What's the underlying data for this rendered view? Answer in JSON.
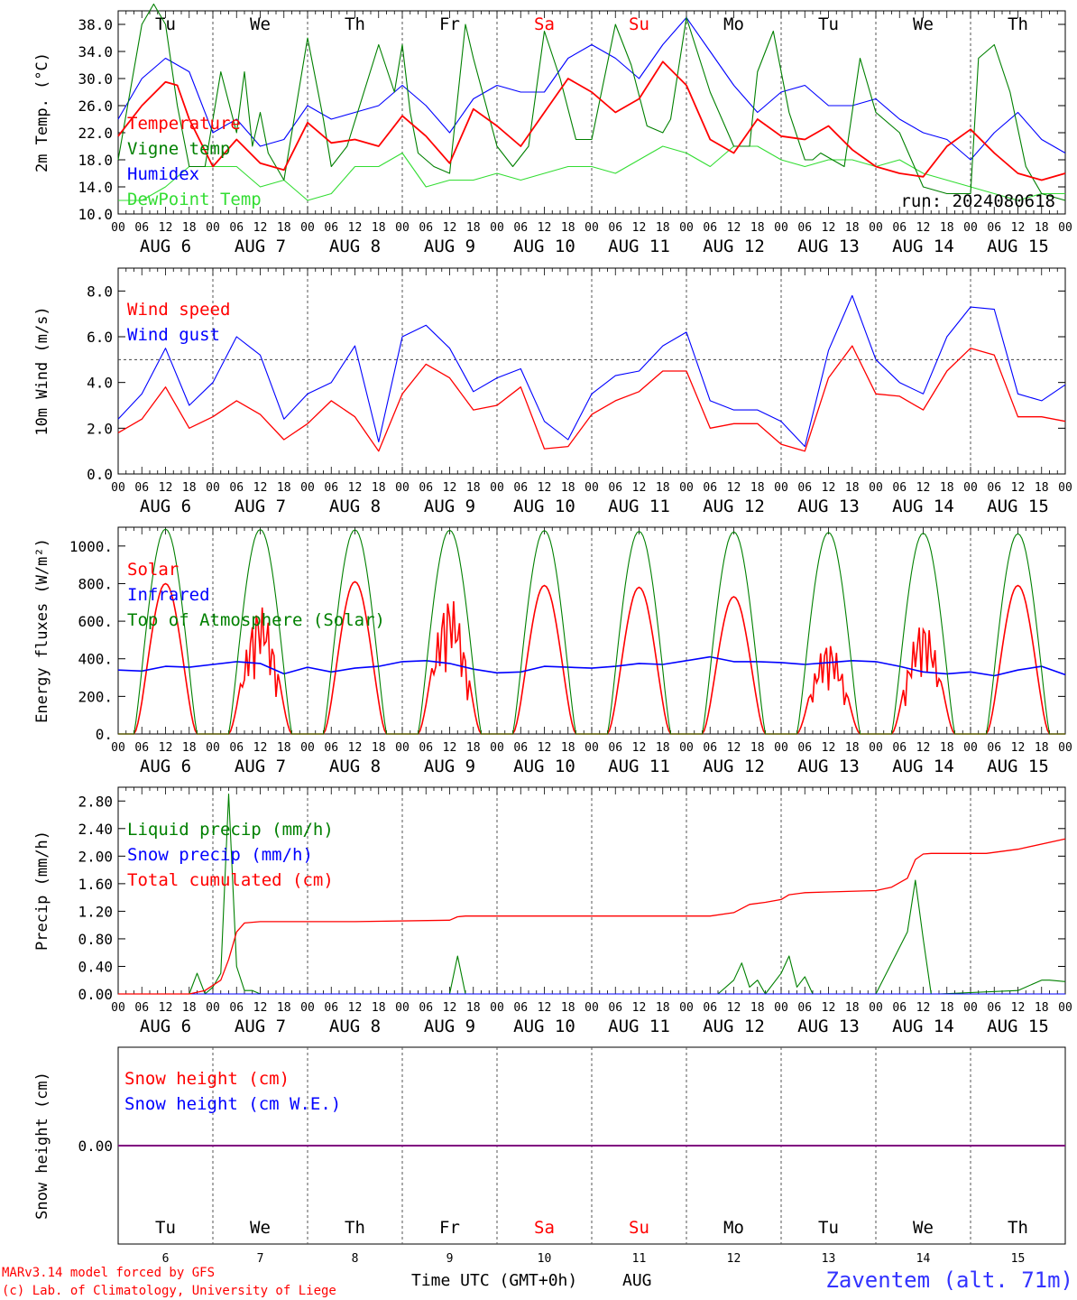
{
  "run_label": "run: 2024080618",
  "footer": {
    "model": "MARv3.14 model forced by GFS",
    "lab": "(c) Lab. of Climatology, University of Liege",
    "xlabel": "Time UTC (GMT+0h)",
    "month": "AUG",
    "station": "Zaventem (alt. 71m)"
  },
  "colors": {
    "red": "#ff0000",
    "dark_green": "#008000",
    "blue": "#0000ff",
    "light_green": "#33dd33",
    "weekend": "#ff0000",
    "purple": "#800080"
  },
  "chart_data": [
    {
      "type": "line",
      "ylabel": "2m Temp. (°C)",
      "ylim": [
        10,
        40
      ],
      "yticks": [
        "10.0",
        "14.0",
        "18.0",
        "22.0",
        "26.0",
        "30.0",
        "34.0",
        "38.0"
      ],
      "x_unit": "hours since 2024-08-06 00 UTC",
      "day_names": [
        "Tu",
        "We",
        "Th",
        "Fr",
        "Sa",
        "Su",
        "Mo",
        "Tu",
        "We",
        "Th"
      ],
      "day_name_colors": [
        "#000000",
        "#000000",
        "#000000",
        "#000000",
        "#ff0000",
        "#ff0000",
        "#000000",
        "#000000",
        "#000000",
        "#000000"
      ],
      "hour_ticks": [
        "00",
        "06",
        "12",
        "18"
      ],
      "date_labels": [
        "AUG 6",
        "AUG 7",
        "AUG 8",
        "AUG 9",
        "AUG 10",
        "AUG 11",
        "AUG 12",
        "AUG 13",
        "AUG 14",
        "AUG 15"
      ],
      "series": [
        {
          "name": "Temperature",
          "color": "#ff0000",
          "width": 1.8,
          "x": [
            0,
            6,
            12,
            15,
            18,
            24,
            30,
            36,
            42,
            48,
            54,
            60,
            66,
            72,
            78,
            84,
            90,
            96,
            102,
            108,
            114,
            120,
            126,
            132,
            138,
            144,
            150,
            156,
            162,
            168,
            174,
            180,
            186,
            192,
            198,
            204,
            210,
            216,
            222,
            228,
            234,
            240
          ],
          "y": [
            21.5,
            26,
            29.5,
            29,
            24,
            17,
            21,
            17.5,
            16.5,
            23.5,
            20.5,
            21,
            20,
            24.5,
            21.5,
            17.5,
            25.5,
            23,
            20,
            25,
            30,
            28,
            25,
            27,
            32.5,
            29,
            21,
            19,
            24,
            21.5,
            21,
            23,
            19.5,
            17,
            16,
            15.5,
            20,
            22.5,
            19,
            16,
            15,
            16
          ]
        },
        {
          "name": "Vigne temp",
          "color": "#008000",
          "width": 1.1,
          "x": [
            0,
            6,
            9,
            12,
            15,
            18,
            22,
            26,
            30,
            32,
            34,
            36,
            38,
            42,
            48,
            52,
            54,
            58,
            66,
            70,
            72,
            74,
            76,
            80,
            84,
            88,
            90,
            96,
            100,
            104,
            108,
            112,
            116,
            120,
            126,
            130,
            134,
            138,
            140,
            144,
            150,
            156,
            160,
            162,
            166,
            170,
            174,
            176,
            178,
            184,
            188,
            192,
            198,
            204,
            210,
            216,
            218,
            222,
            226,
            230,
            234,
            240
          ],
          "y": [
            18,
            38,
            41,
            38,
            26,
            17,
            17,
            31,
            22,
            31,
            20,
            25,
            19,
            15,
            36,
            24,
            17,
            20,
            35,
            28,
            35,
            25,
            19,
            17,
            16,
            38,
            33,
            20,
            17,
            20,
            37,
            30,
            21,
            21,
            38,
            32,
            23,
            22,
            24,
            39,
            28,
            20,
            20,
            31,
            37,
            25,
            18,
            18,
            19,
            17,
            33,
            25,
            22,
            14,
            13,
            13,
            33,
            35,
            28,
            17,
            13,
            12
          ]
        },
        {
          "name": "Humidex",
          "color": "#0000ff",
          "width": 1.1,
          "x": [
            0,
            6,
            12,
            18,
            24,
            30,
            36,
            42,
            48,
            54,
            60,
            66,
            72,
            78,
            84,
            90,
            96,
            102,
            108,
            114,
            120,
            126,
            132,
            138,
            144,
            150,
            156,
            162,
            168,
            174,
            180,
            186,
            192,
            198,
            204,
            210,
            216,
            222,
            228,
            234,
            240
          ],
          "y": [
            24,
            30,
            33,
            31,
            22,
            24,
            20,
            21,
            26,
            24,
            25,
            26,
            29,
            26,
            22,
            27,
            29,
            28,
            28,
            33,
            35,
            33,
            30,
            35,
            39,
            34,
            29,
            25,
            28,
            29,
            26,
            26,
            27,
            24,
            22,
            21,
            18,
            22,
            25,
            21,
            19
          ]
        },
        {
          "name": "DewPoint Temp",
          "color": "#33dd33",
          "width": 1.1,
          "x": [
            0,
            6,
            12,
            18,
            24,
            30,
            36,
            42,
            48,
            54,
            60,
            66,
            72,
            78,
            84,
            90,
            96,
            102,
            108,
            114,
            120,
            126,
            132,
            138,
            144,
            150,
            156,
            162,
            168,
            174,
            180,
            186,
            192,
            198,
            204,
            210,
            216,
            222,
            228,
            234,
            240
          ],
          "y": [
            12,
            12,
            14,
            17,
            17,
            17,
            14,
            15,
            12,
            13,
            17,
            17,
            19,
            14,
            15,
            15,
            16,
            15,
            16,
            17,
            17,
            16,
            18,
            20,
            19,
            17,
            20,
            20,
            18,
            17,
            18,
            18,
            17,
            18,
            16,
            15,
            14,
            13,
            12,
            13,
            13
          ]
        }
      ]
    },
    {
      "type": "line",
      "ylabel": "10m Wind (m/s)",
      "ylim": [
        0,
        9
      ],
      "yticks": [
        "0.0",
        "2.0",
        "4.0",
        "6.0",
        "8.0"
      ],
      "reference_line": 5,
      "date_labels": [
        "AUG 6",
        "AUG 7",
        "AUG 8",
        "AUG 9",
        "AUG 10",
        "AUG 11",
        "AUG 12",
        "AUG 13",
        "AUG 14",
        "AUG 15"
      ],
      "series": [
        {
          "name": "Wind speed",
          "color": "#ff0000",
          "width": 1.3,
          "x": [
            0,
            6,
            12,
            18,
            24,
            30,
            36,
            42,
            48,
            54,
            60,
            66,
            72,
            78,
            84,
            90,
            96,
            102,
            108,
            114,
            120,
            126,
            132,
            138,
            144,
            150,
            156,
            162,
            168,
            174,
            180,
            186,
            192,
            198,
            204,
            210,
            216,
            222,
            228,
            234,
            240
          ],
          "y": [
            1.8,
            2.4,
            3.8,
            2,
            2.5,
            3.2,
            2.6,
            1.5,
            2.2,
            3.2,
            2.5,
            1,
            3.5,
            4.8,
            4.2,
            2.8,
            3,
            3.8,
            1.1,
            1.2,
            2.6,
            3.2,
            3.6,
            4.5,
            4.5,
            2,
            2.2,
            2.2,
            1.3,
            1,
            4.2,
            5.6,
            3.5,
            3.4,
            2.8,
            4.5,
            5.5,
            5.2,
            2.5,
            2.5,
            2.3
          ]
        },
        {
          "name": "Wind gust",
          "color": "#0000ff",
          "width": 1.1,
          "x": [
            0,
            6,
            12,
            18,
            24,
            30,
            36,
            42,
            48,
            54,
            60,
            66,
            72,
            78,
            84,
            90,
            96,
            102,
            108,
            114,
            120,
            126,
            132,
            138,
            144,
            150,
            156,
            162,
            168,
            174,
            180,
            186,
            192,
            198,
            204,
            210,
            216,
            222,
            228,
            234,
            240
          ],
          "y": [
            2.4,
            3.5,
            5.5,
            3,
            4,
            6,
            5.2,
            2.4,
            3.5,
            4,
            5.6,
            1.4,
            6,
            6.5,
            5.5,
            3.6,
            4.2,
            4.6,
            2.3,
            1.5,
            3.5,
            4.3,
            4.5,
            5.6,
            6.2,
            3.2,
            2.8,
            2.8,
            2.3,
            1.2,
            5.4,
            7.8,
            5,
            4,
            3.5,
            6,
            7.3,
            7.2,
            3.5,
            3.2,
            3.9
          ]
        }
      ]
    },
    {
      "type": "line",
      "ylabel": "Energy fluxes (W/m²)",
      "ylim": [
        0,
        1100
      ],
      "yticks": [
        "0.",
        "200.",
        "400.",
        "600.",
        "800.",
        "1000."
      ],
      "date_labels": [
        "AUG 6",
        "AUG 7",
        "AUG 8",
        "AUG 9",
        "AUG 10",
        "AUG 11",
        "AUG 12",
        "AUG 13",
        "AUG 14",
        "AUG 15"
      ],
      "series": [
        {
          "name": "Solar",
          "color": "#ff0000",
          "width": 1.6,
          "peaks": [
            800,
            680,
            810,
            730,
            790,
            780,
            730,
            490,
            600,
            790
          ]
        },
        {
          "name": "Infrared",
          "color": "#0000ff",
          "width": 1.6,
          "x": [
            0,
            6,
            12,
            18,
            24,
            30,
            36,
            42,
            48,
            54,
            60,
            66,
            72,
            78,
            84,
            90,
            96,
            102,
            108,
            114,
            120,
            126,
            132,
            138,
            144,
            150,
            156,
            162,
            168,
            174,
            180,
            186,
            192,
            198,
            204,
            210,
            216,
            222,
            228,
            234,
            240
          ],
          "y": [
            340,
            335,
            360,
            355,
            370,
            385,
            375,
            320,
            355,
            330,
            350,
            360,
            385,
            390,
            375,
            345,
            325,
            330,
            360,
            355,
            350,
            360,
            375,
            370,
            390,
            410,
            385,
            385,
            380,
            370,
            380,
            390,
            385,
            360,
            330,
            320,
            330,
            310,
            340,
            360,
            315
          ]
        },
        {
          "name": "Top of Atmosphere (Solar)",
          "color": "#008000",
          "width": 1.1,
          "peaks": [
            1090,
            1088,
            1086,
            1084,
            1082,
            1078,
            1075,
            1072,
            1068,
            1065
          ]
        }
      ]
    },
    {
      "type": "line",
      "ylabel": "Precip (mm/h)",
      "ylim": [
        0,
        3
      ],
      "yticks": [
        "0.00",
        "0.40",
        "0.80",
        "1.20",
        "1.60",
        "2.00",
        "2.40",
        "2.80"
      ],
      "date_labels": [
        "AUG 6",
        "AUG 7",
        "AUG 8",
        "AUG 9",
        "AUG 10",
        "AUG 11",
        "AUG 12",
        "AUG 13",
        "AUG 14",
        "AUG 15"
      ],
      "series": [
        {
          "name": "Liquid precip (mm/h)",
          "color": "#008000",
          "width": 1.1,
          "x": [
            0,
            18,
            20,
            22,
            24,
            26,
            28,
            30,
            32,
            34,
            36,
            60,
            84,
            86,
            88,
            90,
            152,
            156,
            158,
            160,
            162,
            164,
            168,
            170,
            172,
            174,
            176,
            180,
            192,
            200,
            202,
            204,
            206,
            208,
            228,
            234,
            236,
            240
          ],
          "y": [
            0,
            0,
            0.3,
            0,
            0.1,
            0.3,
            2.9,
            0.4,
            0.05,
            0.05,
            0,
            0,
            0,
            0.55,
            0,
            0,
            0,
            0.2,
            0.45,
            0.1,
            0.2,
            0,
            0.3,
            0.55,
            0.1,
            0.25,
            0,
            0,
            0,
            0.9,
            1.65,
            0.8,
            0,
            0,
            0.05,
            0.2,
            0.2,
            0.18
          ]
        },
        {
          "name": "Snow precip (mm/h)",
          "color": "#0000ff",
          "width": 1.1,
          "x": [
            0,
            240
          ],
          "y": [
            0,
            0
          ]
        },
        {
          "name": "Total cumulated (cm)",
          "color": "#ff0000",
          "width": 1.3,
          "x": [
            0,
            18,
            22,
            26,
            28,
            30,
            32,
            36,
            60,
            84,
            86,
            88,
            150,
            156,
            160,
            164,
            168,
            170,
            174,
            180,
            192,
            196,
            200,
            202,
            204,
            206,
            220,
            228,
            240
          ],
          "y": [
            0,
            0,
            0.05,
            0.2,
            0.5,
            0.9,
            1.03,
            1.05,
            1.05,
            1.07,
            1.12,
            1.13,
            1.13,
            1.18,
            1.3,
            1.33,
            1.37,
            1.44,
            1.47,
            1.48,
            1.5,
            1.55,
            1.68,
            1.95,
            2.03,
            2.04,
            2.04,
            2.1,
            2.25
          ]
        }
      ]
    },
    {
      "type": "line",
      "ylabel": "Snow height (cm)",
      "ylim": [
        -1,
        1
      ],
      "yticks": [
        "0.00"
      ],
      "bottom_days": [
        "6",
        "7",
        "8",
        "9",
        "10",
        "11",
        "12",
        "13",
        "14",
        "15"
      ],
      "series": [
        {
          "name": "Snow height (cm)",
          "color": "#ff0000",
          "width": 1.1,
          "x": [
            0,
            240
          ],
          "y": [
            0,
            0
          ]
        },
        {
          "name": "Snow height (cm W.E.)",
          "color": "#0000ff",
          "width": 1.1,
          "x": [
            0,
            240
          ],
          "y": [
            0,
            0
          ]
        }
      ]
    }
  ]
}
